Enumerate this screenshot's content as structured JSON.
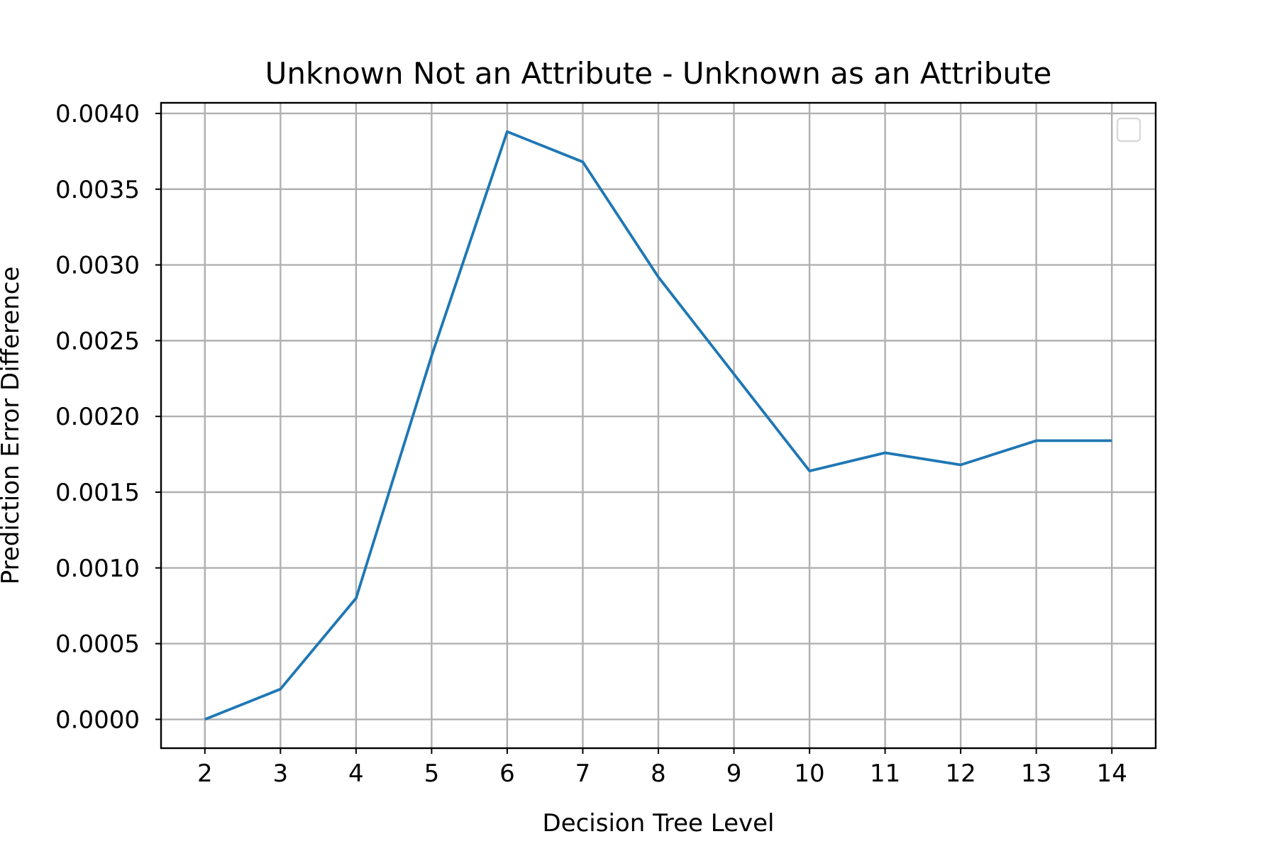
{
  "chart_data": {
    "type": "line",
    "title": "Unknown Not an Attribute - Unknown as an Attribute",
    "xlabel": "Decision Tree Level",
    "ylabel": "Prediction Error Difference",
    "x": [
      2,
      3,
      4,
      5,
      6,
      7,
      8,
      9,
      10,
      11,
      12,
      13,
      14
    ],
    "series": [
      {
        "values": [
          0.0,
          0.0002,
          0.0008,
          0.0024,
          0.00388,
          0.00368,
          0.00292,
          0.00228,
          0.00164,
          0.00176,
          0.00168,
          0.00184,
          0.00184
        ],
        "color": "#1f77b4"
      }
    ],
    "xlim": [
      1.42,
      14.58
    ],
    "ylim": [
      -0.00019,
      0.00407
    ],
    "xticks": [
      "2",
      "3",
      "4",
      "5",
      "6",
      "7",
      "8",
      "9",
      "10",
      "11",
      "12",
      "13",
      "14"
    ],
    "yticks": [
      "0.0000",
      "0.0005",
      "0.0010",
      "0.0015",
      "0.0020",
      "0.0025",
      "0.0030",
      "0.0035",
      "0.0040"
    ],
    "grid": true,
    "legend": {
      "placement": "top-right",
      "entries": []
    }
  }
}
